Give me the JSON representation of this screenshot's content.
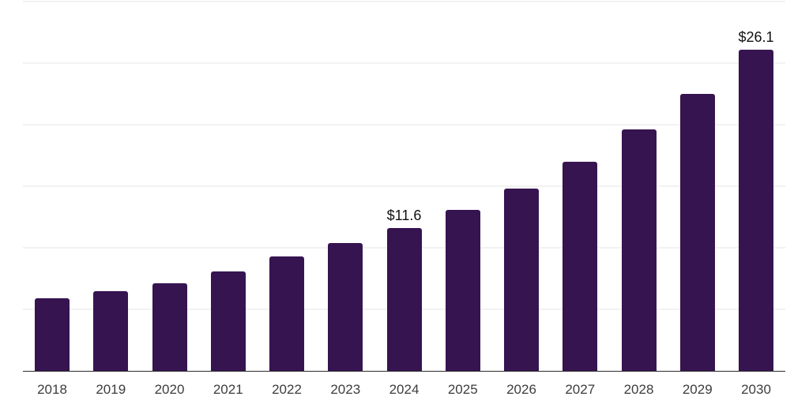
{
  "chart_data": {
    "type": "bar",
    "title": "",
    "xlabel": "",
    "ylabel": "",
    "categories": [
      "2018",
      "2019",
      "2020",
      "2021",
      "2022",
      "2023",
      "2024",
      "2025",
      "2026",
      "2027",
      "2028",
      "2029",
      "2030"
    ],
    "values": [
      5.9,
      6.5,
      7.1,
      8.1,
      9.3,
      10.4,
      11.6,
      13.1,
      14.8,
      17.0,
      19.6,
      22.5,
      26.1
    ],
    "data_labels": {
      "2024": "$11.6",
      "2030": "$26.1"
    },
    "ylim": [
      0,
      30
    ],
    "grid_interval": 5,
    "grid": true,
    "y_tick_labels_visible": false,
    "legend": "none",
    "colors": {
      "bar": "#361450",
      "gridline": "#f2f2f2",
      "axis_line": "#2b2b2b",
      "tick_label": "#3d3d3d",
      "data_label": "#111111",
      "background": "#ffffff"
    }
  }
}
